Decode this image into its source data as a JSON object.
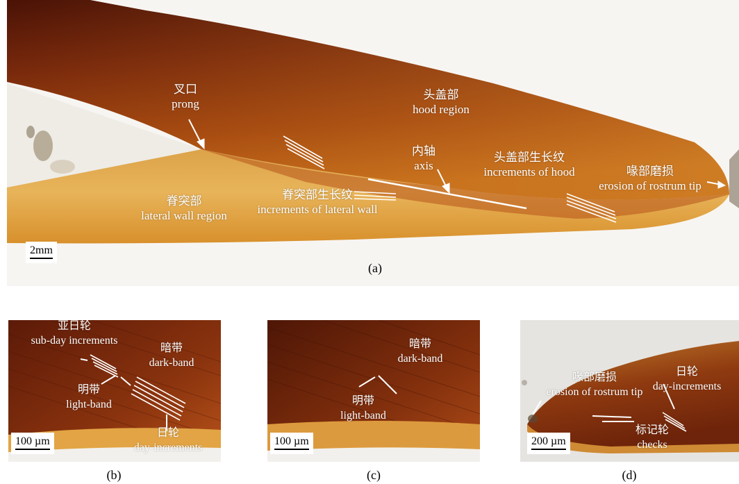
{
  "panel_a": {
    "caption": "(a)",
    "scale": "2mm",
    "labels": {
      "prong": {
        "cn": "叉口",
        "en": "prong"
      },
      "hood": {
        "cn": "头盖部",
        "en": "hood region"
      },
      "axis": {
        "cn": "内轴",
        "en": "axis"
      },
      "hood_increments": {
        "cn": "头盖部生长纹",
        "en": "increments of hood"
      },
      "erosion": {
        "cn": "喙部磨损",
        "en": "erosion of rostrum tip"
      },
      "lateral_wall": {
        "cn": "脊突部",
        "en": "lateral wall region"
      },
      "lateral_increments": {
        "cn": "脊突部生长纹",
        "en": "increments of lateral wall"
      }
    }
  },
  "panel_b": {
    "caption": "(b)",
    "scale": "100 µm",
    "labels": {
      "subday": {
        "cn": "亚日轮",
        "en": "sub-day increments"
      },
      "dark": {
        "cn": "暗带",
        "en": "dark-band"
      },
      "light": {
        "cn": "明带",
        "en": "light-band"
      },
      "day": {
        "cn": "日轮",
        "en": "day-increments"
      }
    }
  },
  "panel_c": {
    "caption": "(c)",
    "scale": "100 µm",
    "labels": {
      "dark": {
        "cn": "暗带",
        "en": "dark-band"
      },
      "light": {
        "cn": "明带",
        "en": "light-band"
      }
    }
  },
  "panel_d": {
    "caption": "(d)",
    "scale": "200 µm",
    "labels": {
      "day": {
        "cn": "日轮",
        "en": "day-increments"
      },
      "erosion": {
        "cn": "喙部磨损",
        "en": "erosion of rostrum tip"
      },
      "checks": {
        "cn": "标记轮",
        "en": "checks"
      }
    }
  }
}
